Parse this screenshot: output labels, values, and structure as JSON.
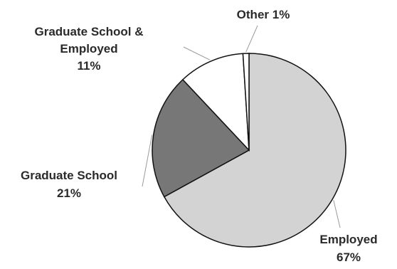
{
  "chart_data": {
    "type": "pie",
    "title": "",
    "slices": [
      {
        "label": "Employed",
        "value_label": "67%",
        "value": 67,
        "color": "#d3d3d3"
      },
      {
        "label": "Graduate School",
        "value_label": "21%",
        "value": 21,
        "color": "#777777"
      },
      {
        "label": "Graduate School & Employed",
        "label_lines": [
          "Graduate School &",
          "Employed"
        ],
        "value_label": "11%",
        "value": 11,
        "color": "#ffffff"
      },
      {
        "label": "Other",
        "value_label": "Other 1%",
        "value": 1,
        "color": "#ffffff"
      }
    ]
  }
}
